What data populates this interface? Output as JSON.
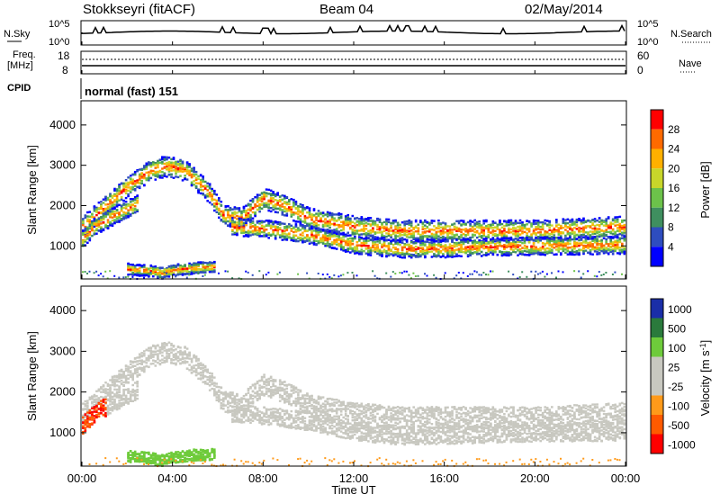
{
  "header": {
    "station": "Stokkseyri (fitACF)",
    "beam": "Beam 04",
    "date": "02/May/2014"
  },
  "noise_panel": {
    "left_label": "N.Sky",
    "right_label": "N.Search",
    "tick_top": "10^5",
    "tick_bottom": "10^0"
  },
  "freq_panel": {
    "left_label_line1": "Freq.",
    "left_label_line2": "[MHz]",
    "left_tick_top": "18",
    "left_tick_bottom": "8",
    "right_label": "Nave",
    "right_tick_top": "60",
    "right_tick_bottom": "0"
  },
  "cpid_panel": {
    "label": "CPID",
    "value": "normal (fast) 151"
  },
  "colors": {
    "power": [
      "#0000ff",
      "#2e4dbf",
      "#3f8f5f",
      "#6cc24a",
      "#c8d62a",
      "#ffb000",
      "#ff6a00",
      "#ff0000"
    ],
    "velocity": [
      "#1a2ea8",
      "#2a7a3c",
      "#6ecb3b",
      "#c8c8c0",
      "#c8c8c0",
      "#ff9a1a",
      "#ff5a00",
      "#ff0000"
    ]
  },
  "chart_data": [
    {
      "type": "heatmap",
      "name": "power",
      "ylabel": "Slant Range [km]",
      "xlabel": "Time UT",
      "ylim": [
        180,
        4600
      ],
      "yticks": [
        "1000",
        "2000",
        "3000",
        "4000"
      ],
      "xticks": [
        "00:00",
        "04:00",
        "08:00",
        "12:00",
        "16:00",
        "20:00",
        "00:00"
      ],
      "colorbar_label": "Power [dB]",
      "colorbar_ticks": [
        "4",
        "8",
        "12",
        "16",
        "20",
        "24",
        "28"
      ],
      "bands": [
        {
          "t": [
            0,
            1,
            2,
            3,
            3.7,
            4.5,
            5.5,
            6.2,
            7,
            8,
            9,
            10,
            12,
            14,
            16,
            18,
            20,
            22,
            24
          ],
          "r": [
            1500,
            2000,
            2500,
            2900,
            3000,
            2900,
            2400,
            1800,
            1700,
            2200,
            2000,
            1700,
            1500,
            1400,
            1400,
            1400,
            1400,
            1450,
            1500
          ]
        },
        {
          "t": [
            0,
            0.5,
            1.5,
            2.5
          ],
          "r": [
            1200,
            1500,
            1800,
            2100
          ]
        },
        {
          "t": [
            6.5,
            8,
            10,
            12,
            14,
            16,
            18,
            20,
            22,
            24
          ],
          "r": [
            1500,
            1450,
            1300,
            1050,
            950,
            960,
            1000,
            1020,
            1030,
            1050
          ]
        },
        {
          "t": [
            2,
            3,
            3.5,
            4,
            5,
            5.8
          ],
          "r": [
            450,
            400,
            350,
            420,
            480,
            500
          ]
        }
      ]
    },
    {
      "type": "heatmap",
      "name": "velocity",
      "ylabel": "Slant Range [km]",
      "xlabel": "Time UT",
      "ylim": [
        180,
        4600
      ],
      "yticks": [
        "1000",
        "2000",
        "3000",
        "4000"
      ],
      "xticks": [
        "00:00",
        "04:00",
        "08:00",
        "12:00",
        "16:00",
        "20:00",
        "00:00"
      ],
      "colorbar_label": "Velocity [m s-1]",
      "colorbar_ticks": [
        "1000",
        "500",
        "100",
        "25",
        "-25",
        "-100",
        "-500",
        "-1000"
      ]
    }
  ]
}
